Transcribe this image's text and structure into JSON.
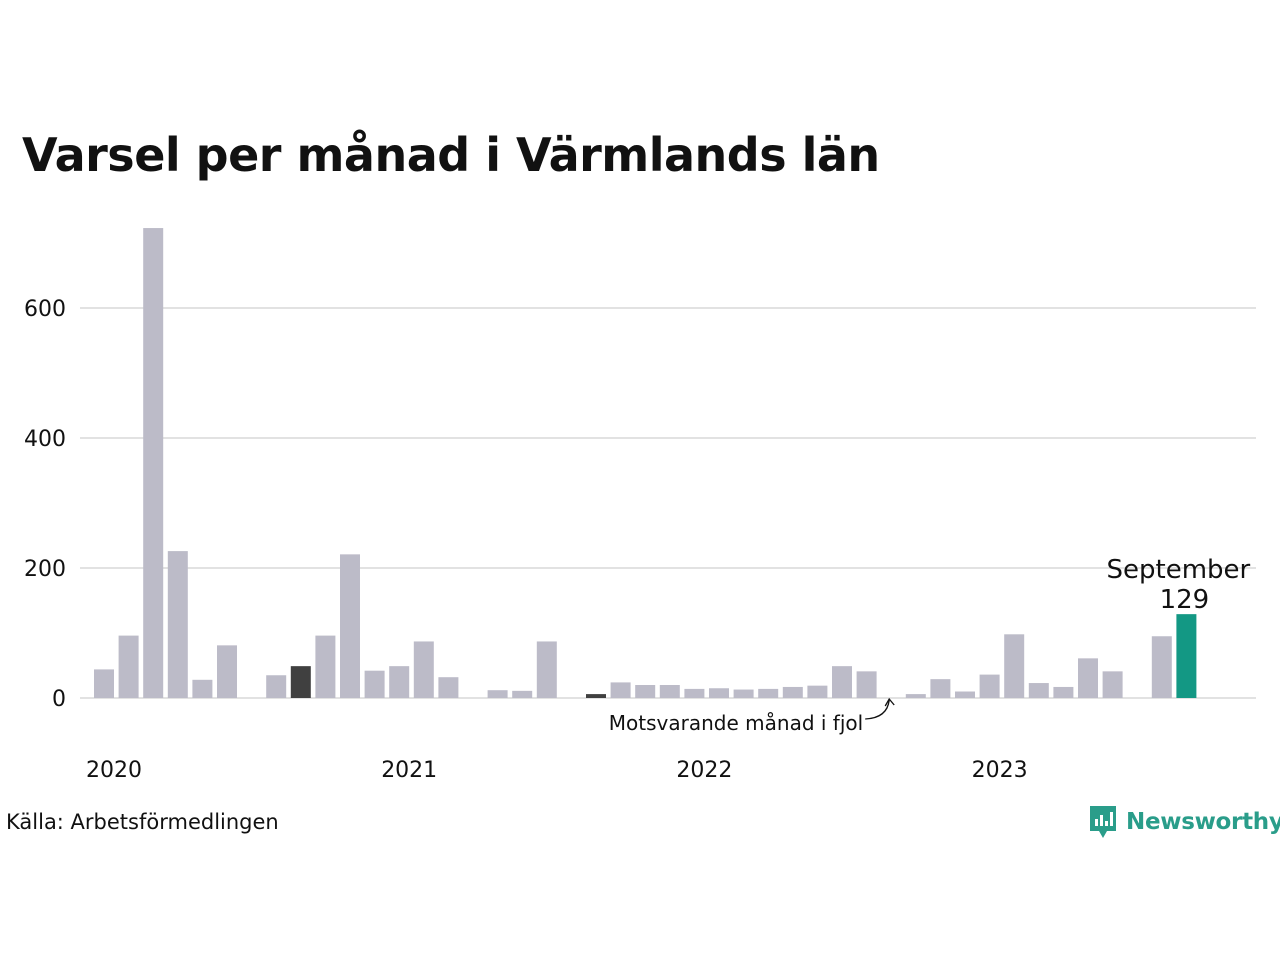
{
  "chart_data": {
    "type": "bar",
    "title": "Varsel per månad i Värmlands län",
    "xlabel": "",
    "ylabel": "",
    "ylim": [
      0,
      725
    ],
    "yticks": [
      0,
      200,
      400,
      600
    ],
    "grid": true,
    "x_tick_labels": [
      "2020",
      "2021",
      "2022",
      "2023"
    ],
    "categories": [
      "2020-01",
      "2020-02",
      "2020-03",
      "2020-04",
      "2020-05",
      "2020-06",
      "2020-07",
      "2020-08",
      "2020-09",
      "2020-10",
      "2020-11",
      "2020-12",
      "2021-01",
      "2021-02",
      "2021-03",
      "2021-04",
      "2021-05",
      "2021-06",
      "2021-07",
      "2021-08",
      "2021-09",
      "2021-10",
      "2021-11",
      "2021-12",
      "2022-01",
      "2022-02",
      "2022-03",
      "2022-04",
      "2022-05",
      "2022-06",
      "2022-07",
      "2022-08",
      "2022-09",
      "2022-10",
      "2022-11",
      "2022-12",
      "2023-01",
      "2023-02",
      "2023-03",
      "2023-04",
      "2023-05",
      "2023-06",
      "2023-07",
      "2023-08",
      "2023-09"
    ],
    "values": [
      44,
      96,
      723,
      226,
      28,
      81,
      0,
      35,
      49,
      96,
      221,
      42,
      49,
      87,
      32,
      0,
      12,
      11,
      87,
      0,
      6,
      24,
      20,
      20,
      14,
      15,
      13,
      14,
      17,
      19,
      49,
      41,
      0,
      6,
      29,
      10,
      36,
      98,
      23,
      17,
      61,
      41,
      0,
      95,
      129
    ],
    "colors": {
      "default": "#bcbbc8",
      "highlight_prior_september": "#404040",
      "current": "#139884",
      "grid": "#e2e2e2"
    },
    "highlight_prior_indices": [
      8,
      20
    ],
    "current_index": 44,
    "annotations": {
      "current_month": "September",
      "current_value": "129",
      "prior_year": "Motsvarande månad i fjol"
    }
  },
  "footer": {
    "source": "Källa: Arbetsförmedlingen",
    "brand": "Newsworthy"
  },
  "brand_icon": "newsworthy-logo-icon"
}
